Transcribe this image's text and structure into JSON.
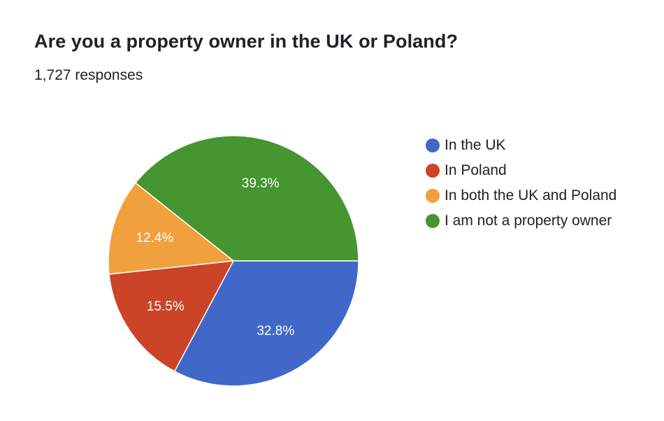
{
  "header": {
    "title": "Are you a property owner in the UK or Poland?",
    "responses": "1,727 responses"
  },
  "chart_data": {
    "type": "pie",
    "title": "Are you a property owner in the UK or Poland?",
    "subtitle": "1,727 responses",
    "legend_position": "right",
    "start_angle_deg": 90,
    "direction": "clockwise",
    "slices": [
      {
        "label": "In the UK",
        "percent": 32.8,
        "display": "32.8%",
        "color": "#4167c8"
      },
      {
        "label": "In Poland",
        "percent": 15.5,
        "display": "15.5%",
        "color": "#cb4427"
      },
      {
        "label": "In both the UK and Poland",
        "percent": 12.4,
        "display": "12.4%",
        "color": "#f0a03c"
      },
      {
        "label": "I am not a property owner",
        "percent": 39.3,
        "display": "39.3%",
        "color": "#459530"
      }
    ]
  }
}
